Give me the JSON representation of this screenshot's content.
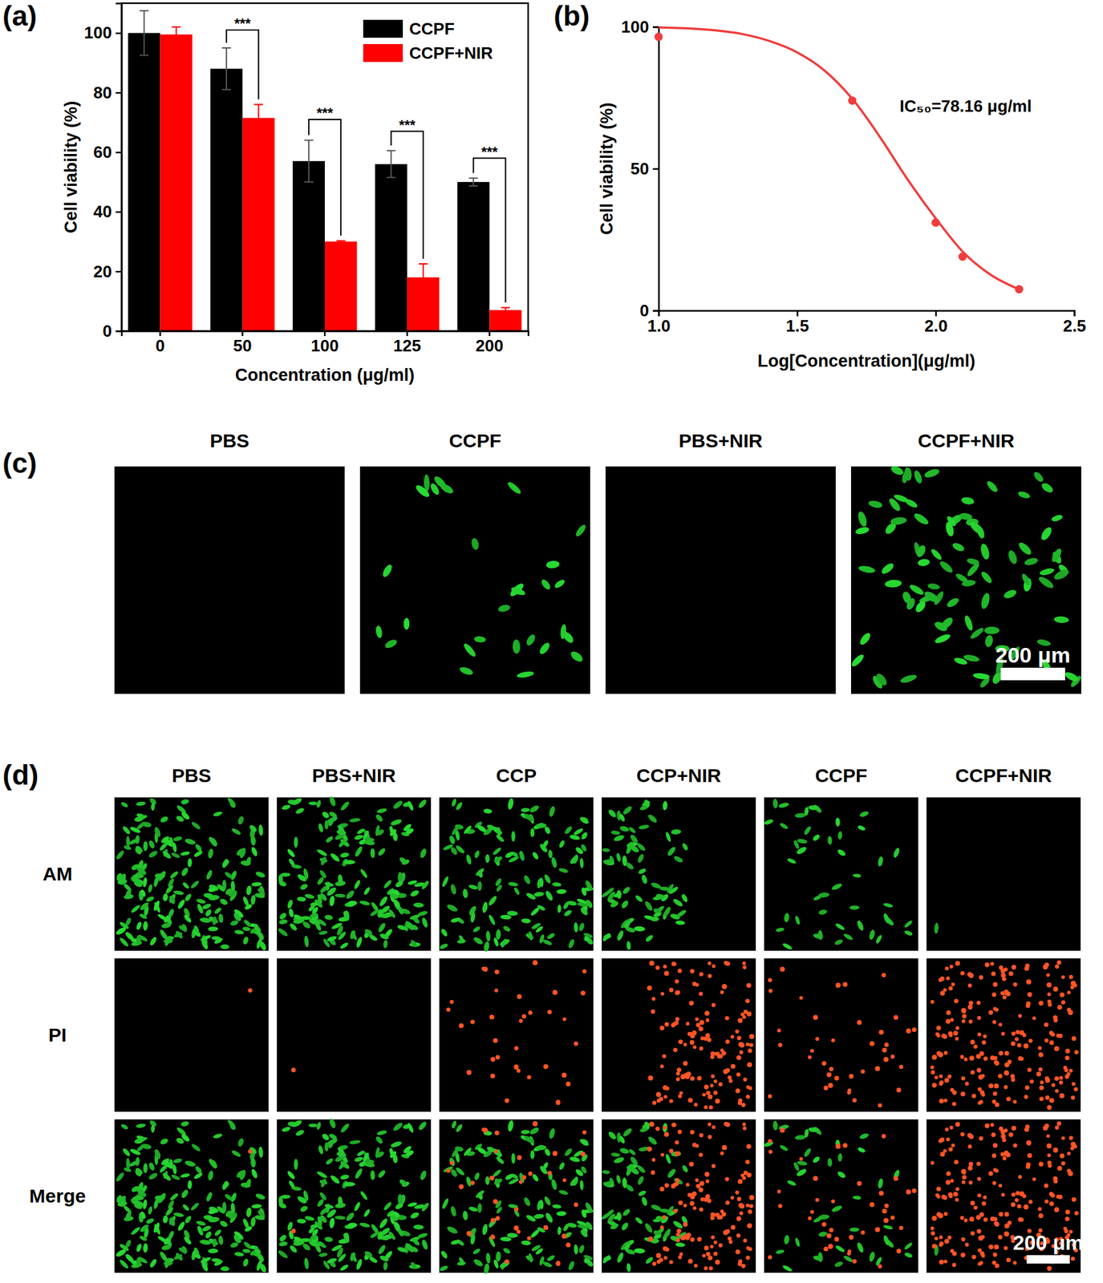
{
  "chart_data": [
    {
      "type": "bar",
      "panel_label": "(a)",
      "x_label": "Concentration (μg/ml)",
      "y_label": "Cell viability (%)",
      "categories": [
        "0",
        "50",
        "100",
        "125",
        "200"
      ],
      "series": [
        {
          "name": "CCPF",
          "color": "#000000",
          "values": [
            100,
            88,
            57,
            56,
            50
          ],
          "errors": [
            7.5,
            7,
            7,
            4.5,
            1.3
          ]
        },
        {
          "name": "CCPF+NIR",
          "color": "#ff0000",
          "values": [
            99.5,
            71.5,
            30,
            18,
            7
          ],
          "errors": [
            2.5,
            4.5,
            0.3,
            4.5,
            0.8
          ]
        }
      ],
      "ylim": [
        0,
        110
      ],
      "yticks": [
        0,
        20,
        40,
        60,
        80,
        100
      ],
      "legend": "upper right",
      "annotations": [
        {
          "text": "***",
          "category": 1,
          "y": 101
        },
        {
          "text": "***",
          "category": 2,
          "y": 71
        },
        {
          "text": "***",
          "category": 3,
          "y": 67
        },
        {
          "text": "***",
          "category": 4,
          "y": 58
        }
      ]
    },
    {
      "type": "line",
      "panel_label": "(b)",
      "x_label": "Log[Concentration](μg/ml)",
      "y_label": "Cell viability (%)",
      "xlim": [
        1.0,
        2.5
      ],
      "xticks": [
        {
          "value": 1.0,
          "label": "1.0"
        },
        1.5,
        {
          "value": 2.0,
          "label": "2.0"
        },
        2.5
      ],
      "ylim": [
        0,
        100
      ],
      "yticks": [
        0,
        50,
        100
      ],
      "annotations": [
        {
          "text": "IC₅₀=78.16 μg/ml"
        }
      ],
      "series": [
        {
          "type": "line",
          "color": "#f03c3c",
          "marker": "none",
          "x": [
            1.0,
            1.1,
            1.2,
            1.3,
            1.4,
            1.5,
            1.6,
            1.7,
            1.8,
            1.9,
            2.0,
            2.1,
            2.2,
            2.3
          ],
          "values": [
            99.8,
            99.5,
            98.8,
            97.5,
            95,
            91,
            84.5,
            74.5,
            61,
            46,
            32.5,
            20.5,
            12.5,
            7.5
          ]
        },
        {
          "type": "scatter",
          "color": "#f03c3c",
          "marker": "circle",
          "x": [
            1.0,
            1.699,
            2.0,
            2.097,
            2.301
          ],
          "values": [
            96.5,
            74,
            31,
            19,
            7.5
          ]
        }
      ]
    }
  ],
  "images": [
    {
      "panel_label": "(c)",
      "columns": [
        "PBS",
        "CCPF",
        "PBS+NIR",
        "CCPF+NIR"
      ],
      "scale_bar": "200 μm"
    },
    {
      "panel_label": "(d)",
      "columns": [
        "PBS",
        "PBS+NIR",
        "CCP",
        "CCP+NIR",
        "CCPF",
        "CCPF+NIR"
      ],
      "rows": [
        "AM",
        "PI",
        "Merge"
      ],
      "scale_bar": "200 μm"
    }
  ]
}
